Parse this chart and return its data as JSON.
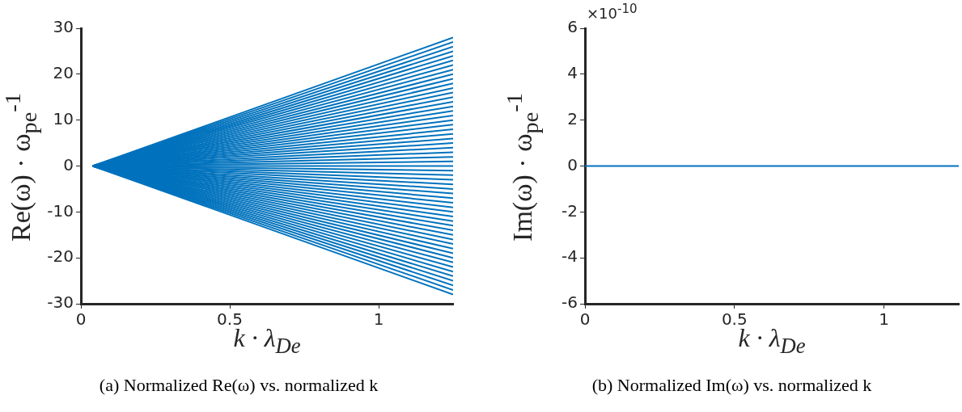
{
  "chart_data": [
    {
      "type": "line",
      "title": "(a) Normalized Re(ω) vs. normalized k",
      "xlabel": "k · λ$_{De}$",
      "ylabel": "Re(ω) · ω$_{pe}$$^{-1}$",
      "x": [
        0.04,
        1.25
      ],
      "xlim": [
        0,
        1.25
      ],
      "xticks": [
        0,
        0.5,
        1
      ],
      "ylim": [
        -30,
        30
      ],
      "yticks": [
        -30,
        -20,
        -10,
        0,
        10,
        20,
        30
      ],
      "series": [
        {
          "color": "#0072bd",
          "values": [
            0,
            -28
          ]
        },
        {
          "color": "#0072bd",
          "values": [
            0,
            -27
          ]
        },
        {
          "color": "#0072bd",
          "values": [
            0,
            -26
          ]
        },
        {
          "color": "#0072bd",
          "values": [
            0,
            -25
          ]
        },
        {
          "color": "#0072bd",
          "values": [
            0,
            -24
          ]
        },
        {
          "color": "#0072bd",
          "values": [
            0,
            -23
          ]
        },
        {
          "color": "#0072bd",
          "values": [
            0,
            -22
          ]
        },
        {
          "color": "#0072bd",
          "values": [
            0,
            -21
          ]
        },
        {
          "color": "#0072bd",
          "values": [
            0,
            -20
          ]
        },
        {
          "color": "#0072bd",
          "values": [
            0,
            -19
          ]
        },
        {
          "color": "#0072bd",
          "values": [
            0,
            -18
          ]
        },
        {
          "color": "#0072bd",
          "values": [
            0,
            -17
          ]
        },
        {
          "color": "#0072bd",
          "values": [
            0,
            -16
          ]
        },
        {
          "color": "#0072bd",
          "values": [
            0,
            -15
          ]
        },
        {
          "color": "#0072bd",
          "values": [
            0,
            -14
          ]
        },
        {
          "color": "#0072bd",
          "values": [
            0,
            -13
          ]
        },
        {
          "color": "#0072bd",
          "values": [
            0,
            -12
          ]
        },
        {
          "color": "#0072bd",
          "values": [
            0,
            -11
          ]
        },
        {
          "color": "#0072bd",
          "values": [
            0,
            -10
          ]
        },
        {
          "color": "#0072bd",
          "values": [
            0,
            -9
          ]
        },
        {
          "color": "#0072bd",
          "values": [
            0,
            -8
          ]
        },
        {
          "color": "#0072bd",
          "values": [
            0,
            -7
          ]
        },
        {
          "color": "#0072bd",
          "values": [
            0,
            -6
          ]
        },
        {
          "color": "#0072bd",
          "values": [
            0,
            -5
          ]
        },
        {
          "color": "#0072bd",
          "values": [
            0,
            -4
          ]
        },
        {
          "color": "#0072bd",
          "values": [
            0,
            -3
          ]
        },
        {
          "color": "#0072bd",
          "values": [
            0,
            -2
          ]
        },
        {
          "color": "#0072bd",
          "values": [
            0,
            -1
          ]
        },
        {
          "color": "#0072bd",
          "values": [
            0,
            0
          ]
        },
        {
          "color": "#0072bd",
          "values": [
            0,
            1
          ]
        },
        {
          "color": "#0072bd",
          "values": [
            0,
            2
          ]
        },
        {
          "color": "#0072bd",
          "values": [
            0,
            3
          ]
        },
        {
          "color": "#0072bd",
          "values": [
            0,
            4
          ]
        },
        {
          "color": "#0072bd",
          "values": [
            0,
            5
          ]
        },
        {
          "color": "#0072bd",
          "values": [
            0,
            6
          ]
        },
        {
          "color": "#0072bd",
          "values": [
            0,
            7
          ]
        },
        {
          "color": "#0072bd",
          "values": [
            0,
            8
          ]
        },
        {
          "color": "#0072bd",
          "values": [
            0,
            9
          ]
        },
        {
          "color": "#0072bd",
          "values": [
            0,
            10
          ]
        },
        {
          "color": "#0072bd",
          "values": [
            0,
            11
          ]
        },
        {
          "color": "#0072bd",
          "values": [
            0,
            12
          ]
        },
        {
          "color": "#0072bd",
          "values": [
            0,
            13
          ]
        },
        {
          "color": "#0072bd",
          "values": [
            0,
            14
          ]
        },
        {
          "color": "#0072bd",
          "values": [
            0,
            15
          ]
        },
        {
          "color": "#0072bd",
          "values": [
            0,
            16
          ]
        },
        {
          "color": "#0072bd",
          "values": [
            0,
            17
          ]
        },
        {
          "color": "#0072bd",
          "values": [
            0,
            18
          ]
        },
        {
          "color": "#0072bd",
          "values": [
            0,
            19
          ]
        },
        {
          "color": "#0072bd",
          "values": [
            0,
            20
          ]
        },
        {
          "color": "#0072bd",
          "values": [
            0,
            21
          ]
        },
        {
          "color": "#0072bd",
          "values": [
            0,
            22
          ]
        },
        {
          "color": "#0072bd",
          "values": [
            0,
            23
          ]
        },
        {
          "color": "#0072bd",
          "values": [
            0,
            24
          ]
        },
        {
          "color": "#0072bd",
          "values": [
            0,
            25
          ]
        },
        {
          "color": "#0072bd",
          "values": [
            0,
            26
          ]
        },
        {
          "color": "#0072bd",
          "values": [
            0,
            27
          ]
        },
        {
          "color": "#0072bd",
          "values": [
            0,
            28
          ]
        }
      ]
    },
    {
      "type": "line",
      "title": "(b) Normalized Im(ω) vs. normalized k",
      "xlabel": "k · λ$_{De}$",
      "ylabel": "Im(ω) · ω$_{pe}$$^{-1}$",
      "annotations": [
        "×10$^{-10}$"
      ],
      "x": [
        0,
        1.25
      ],
      "xlim": [
        0,
        1.25
      ],
      "xticks": [
        0,
        0.5,
        1
      ],
      "ylim": [
        -6,
        6
      ],
      "yticks": [
        -6,
        -4,
        -2,
        0,
        2,
        4,
        6
      ],
      "series": [
        {
          "color": "#0072bd",
          "values": [
            0,
            0
          ]
        }
      ]
    }
  ]
}
